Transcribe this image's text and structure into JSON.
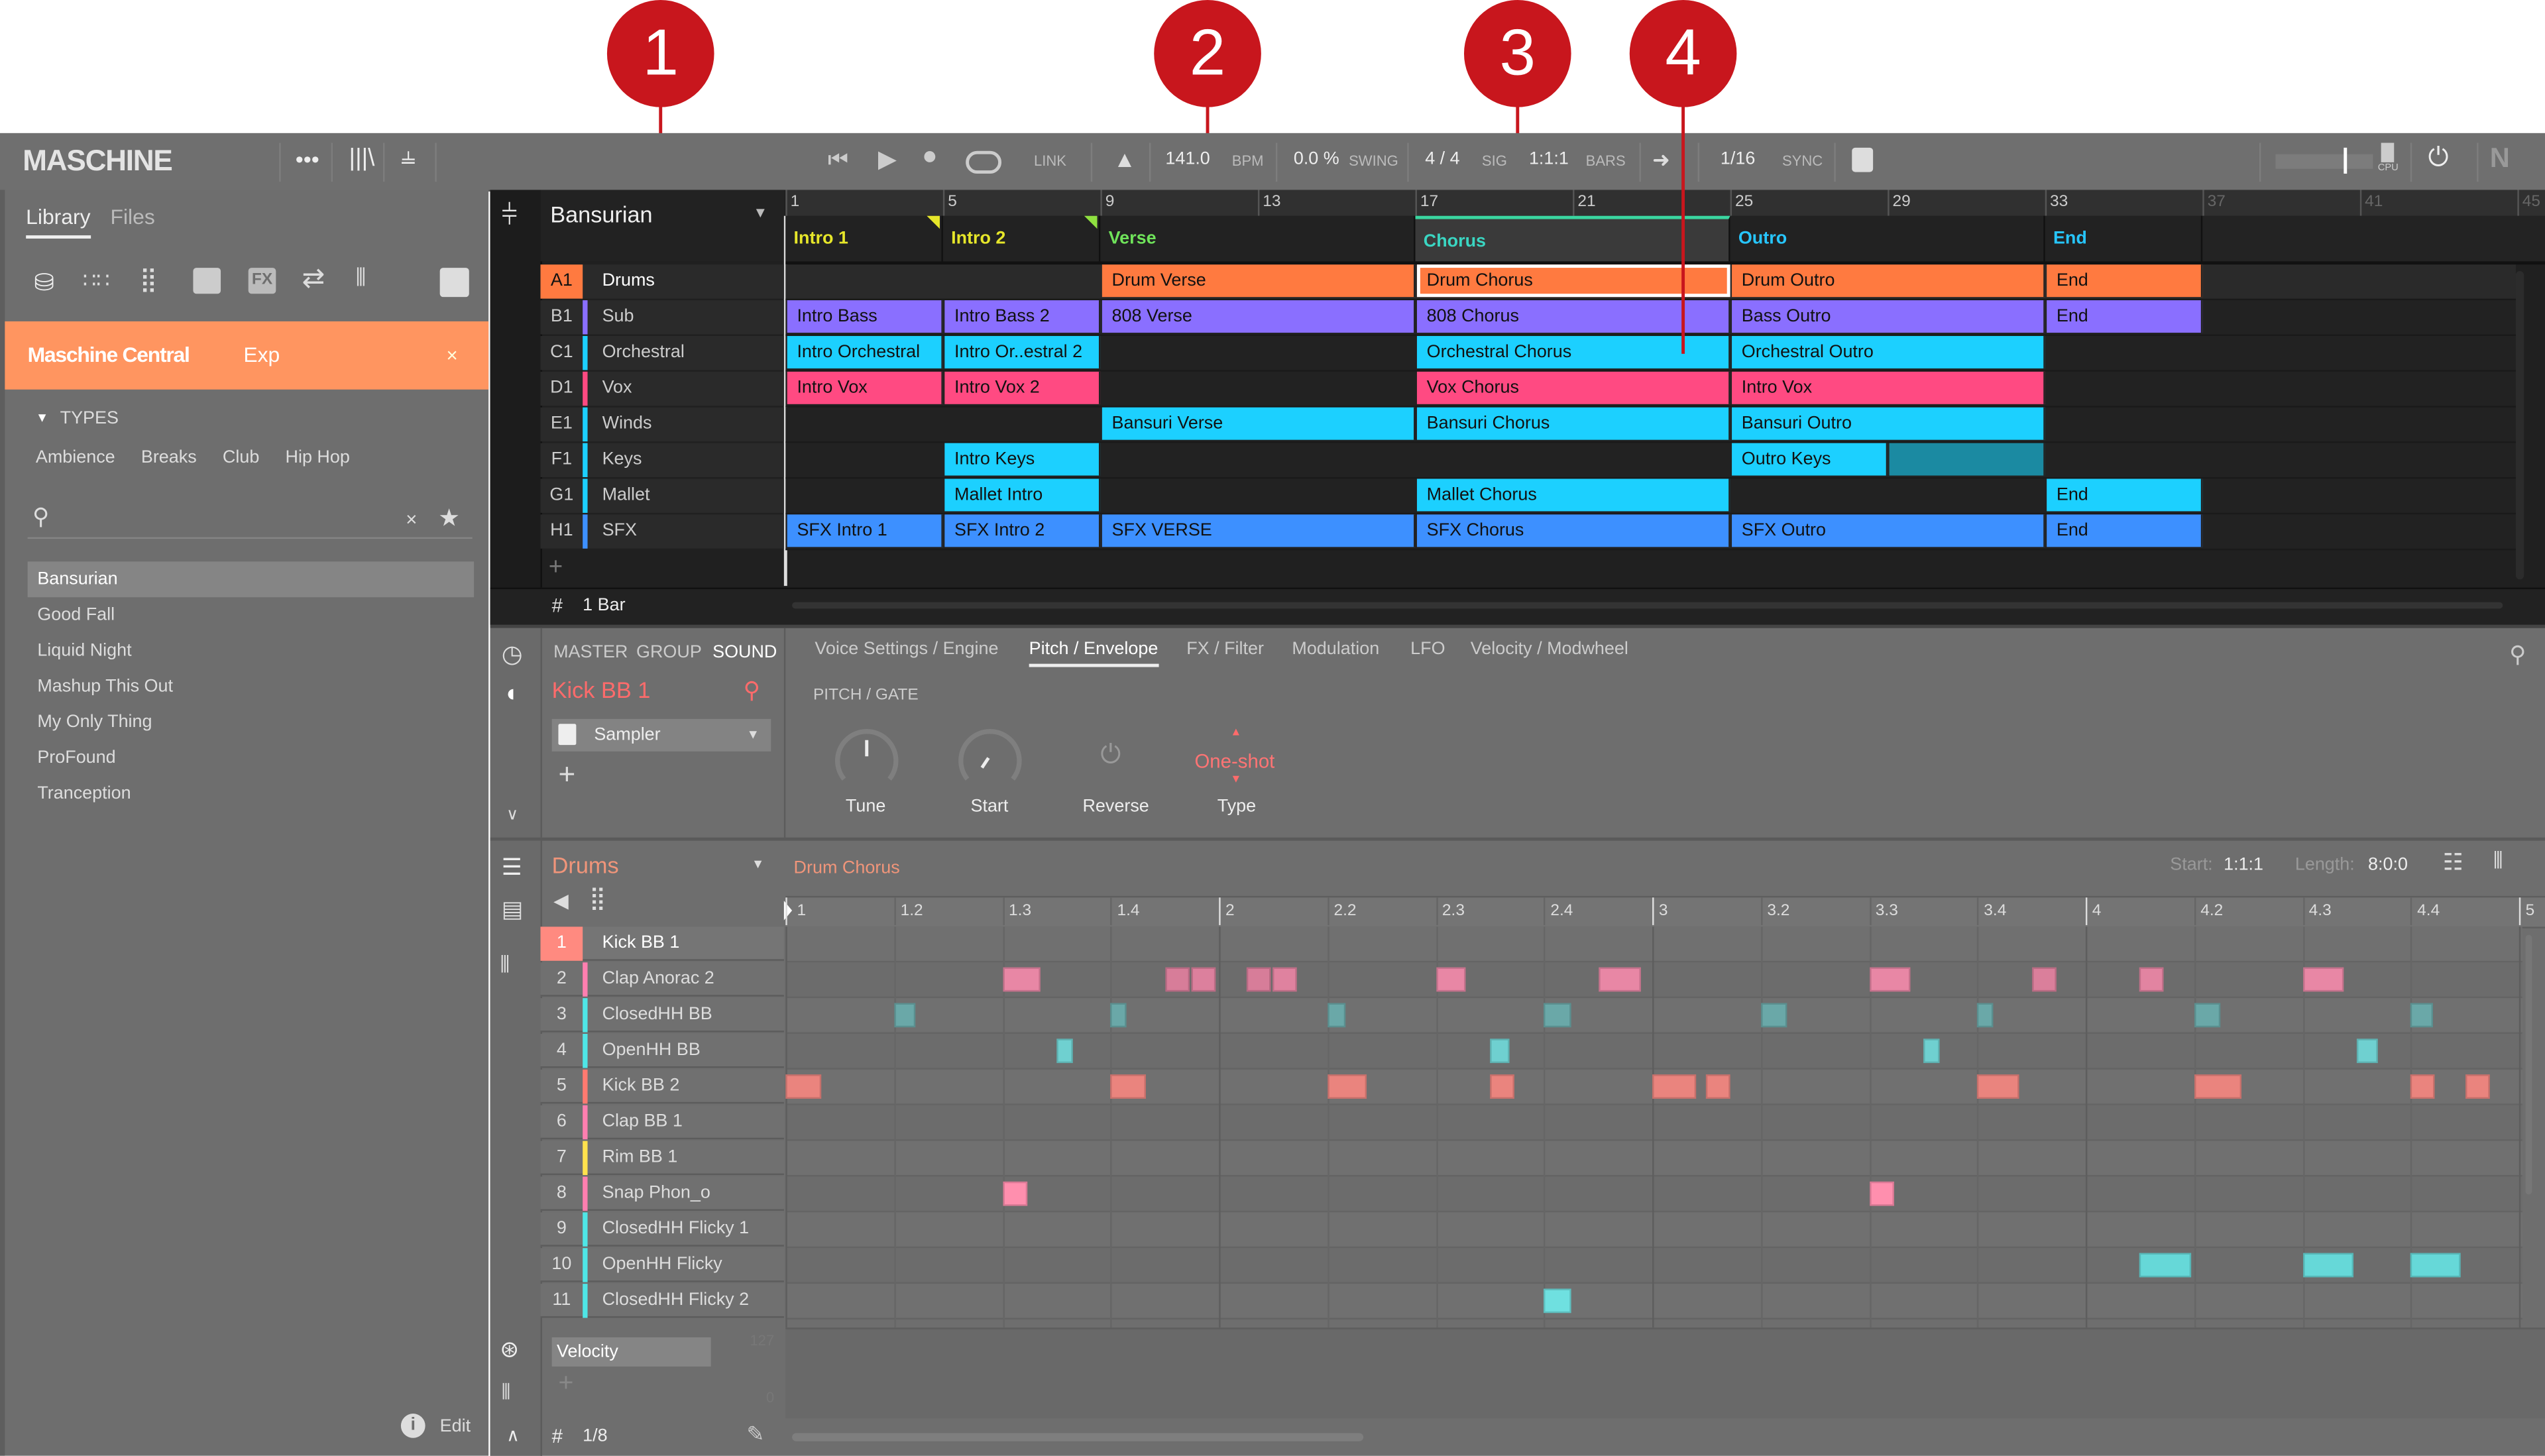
{
  "callouts": [
    "1",
    "2",
    "3",
    "4"
  ],
  "header": {
    "logo": "MASCHINE",
    "link": "LINK",
    "tempo": "141.0",
    "tempo_unit": "BPM",
    "swing": "0.0 %",
    "swing_label": "SWING",
    "signature": "4 / 4",
    "signature_label": "SIG",
    "position": "1:1:1",
    "position_label": "BARS",
    "quantize": "1/16",
    "sync_label": "SYNC",
    "cpu_label": "CPU"
  },
  "sidebar": {
    "tabs": [
      "Library",
      "Files"
    ],
    "banner": "Maschine Central",
    "banner_suffix": "Exp",
    "banner_close": "×",
    "types_label": "TYPES",
    "types": [
      "Ambience",
      "Breaks",
      "Club",
      "Hip Hop"
    ],
    "search_placeholder": "",
    "clear": "×",
    "items": [
      "Bansurian",
      "Good Fall",
      "Liquid Night",
      "Mashup This Out",
      "My Only Thing",
      "ProFound",
      "Tranception"
    ],
    "selected_index": 0,
    "edit_label": "Edit"
  },
  "arrangement": {
    "project": "Bansurian",
    "bar_numbers": [
      "1",
      "5",
      "9",
      "13",
      "17",
      "21",
      "25",
      "29",
      "33",
      "37",
      "41",
      "45"
    ],
    "scenes": [
      {
        "label": "Intro 1",
        "start": 1,
        "length": 4,
        "color": "#e6e62a"
      },
      {
        "label": "Intro 2",
        "start": 5,
        "length": 4,
        "color": "#e6e62a"
      },
      {
        "label": "Verse",
        "start": 9,
        "length": 8,
        "color": "#6fe35a"
      },
      {
        "label": "Chorus",
        "start": 17,
        "length": 8,
        "color": "#3ad6c2",
        "selected": true
      },
      {
        "label": "Outro",
        "start": 25,
        "length": 8,
        "color": "#27c6ff"
      },
      {
        "label": "End",
        "start": 33,
        "length": 4,
        "color": "#27c6ff"
      }
    ],
    "groups": [
      {
        "id": "A1",
        "name": "Drums",
        "color": "#ff7a40",
        "selected": true,
        "clips": [
          {
            "label": "Drum Verse",
            "start": 9,
            "length": 8
          },
          {
            "label": "Drum Chorus",
            "start": 17,
            "length": 8,
            "selected": true
          },
          {
            "label": "Drum Outro",
            "start": 25,
            "length": 8
          },
          {
            "label": "End",
            "start": 33,
            "length": 4
          }
        ]
      },
      {
        "id": "B1",
        "name": "Sub",
        "color": "#8a6fff",
        "clips": [
          {
            "label": "Intro Bass",
            "start": 1,
            "length": 4
          },
          {
            "label": "Intro Bass 2",
            "start": 5,
            "length": 4
          },
          {
            "label": "808 Verse",
            "start": 9,
            "length": 8
          },
          {
            "label": "808 Chorus",
            "start": 17,
            "length": 8
          },
          {
            "label": "Bass Outro",
            "start": 25,
            "length": 8
          },
          {
            "label": "End",
            "start": 33,
            "length": 4
          }
        ]
      },
      {
        "id": "C1",
        "name": "Orchestral",
        "color": "#1cd0ff",
        "clips": [
          {
            "label": "Intro Orchestral",
            "start": 1,
            "length": 4
          },
          {
            "label": "Intro Or..estral 2",
            "start": 5,
            "length": 4
          },
          {
            "label": "Orchestral Chorus",
            "start": 17,
            "length": 8
          },
          {
            "label": "Orchestral Outro",
            "start": 25,
            "length": 8
          }
        ]
      },
      {
        "id": "D1",
        "name": "Vox",
        "color": "#ff4a82",
        "clips": [
          {
            "label": "Intro Vox",
            "start": 1,
            "length": 4
          },
          {
            "label": "Intro Vox 2",
            "start": 5,
            "length": 4
          },
          {
            "label": "Vox Chorus",
            "start": 17,
            "length": 8
          },
          {
            "label": "Intro Vox",
            "start": 25,
            "length": 8
          }
        ]
      },
      {
        "id": "E1",
        "name": "Winds",
        "color": "#1cd0ff",
        "clips": [
          {
            "label": "Bansuri Verse",
            "start": 9,
            "length": 8
          },
          {
            "label": "Bansuri Chorus",
            "start": 17,
            "length": 8
          },
          {
            "label": "Bansuri Outro",
            "start": 25,
            "length": 8
          }
        ]
      },
      {
        "id": "F1",
        "name": "Keys",
        "color": "#1cd0ff",
        "clips": [
          {
            "label": "Intro Keys",
            "start": 5,
            "length": 4
          },
          {
            "label": "Outro Keys",
            "start": 25,
            "length": 4
          },
          {
            "label": "",
            "start": 29,
            "length": 4,
            "color": "#1b8aa2"
          }
        ]
      },
      {
        "id": "G1",
        "name": "Mallet",
        "color": "#1cd0ff",
        "clips": [
          {
            "label": "Mallet Intro",
            "start": 5,
            "length": 4
          },
          {
            "label": "Mallet Chorus",
            "start": 17,
            "length": 8
          },
          {
            "label": "End",
            "start": 33,
            "length": 4
          }
        ]
      },
      {
        "id": "H1",
        "name": "SFX",
        "color": "#3d90ff",
        "clips": [
          {
            "label": "SFX Intro 1",
            "start": 1,
            "length": 4
          },
          {
            "label": "SFX Intro 2",
            "start": 5,
            "length": 4
          },
          {
            "label": "SFX VERSE",
            "start": 9,
            "length": 8
          },
          {
            "label": "SFX Chorus",
            "start": 17,
            "length": 8
          },
          {
            "label": "SFX Outro",
            "start": 25,
            "length": 8
          },
          {
            "label": "End",
            "start": 33,
            "length": 4
          }
        ]
      }
    ],
    "add": "+",
    "grid_label": "1 Bar"
  },
  "sound_panel": {
    "levels": [
      "MASTER",
      "GROUP",
      "SOUND"
    ],
    "active_level": "SOUND",
    "sound_name": "Kick BB 1",
    "plugin": "Sampler",
    "add": "+",
    "tabs": [
      "Voice Settings / Engine",
      "Pitch / Envelope",
      "FX / Filter",
      "Modulation",
      "LFO",
      "Velocity / Modwheel"
    ],
    "active_tab": 1,
    "section": "PITCH / GATE",
    "params": {
      "tune": "Tune",
      "start": "Start",
      "reverse": "Reverse",
      "type": "Type",
      "type_value": "One-shot"
    },
    "knob_values": {
      "tune": 0.5,
      "start": 0.2
    }
  },
  "pattern_editor": {
    "group": "Drums",
    "pattern": "Drum Chorus",
    "start_label": "Start:",
    "start": "1:1:1",
    "length_label": "Length:",
    "length": "8:0:0",
    "ruler": [
      "1",
      "1.2",
      "1.3",
      "1.4",
      "2",
      "2.2",
      "2.3",
      "2.4",
      "3",
      "3.2",
      "3.3",
      "3.4",
      "4",
      "4.2",
      "4.3",
      "4.4",
      "5"
    ],
    "steps_per_bar": 16,
    "sounds": [
      {
        "num": "1",
        "name": "Kick BB 1",
        "color": "#ff8a80",
        "selected": true,
        "notes": []
      },
      {
        "num": "2",
        "name": "Clap Anorac 2",
        "color": "#ff7fb0",
        "note_color": "#e887a5",
        "notes": [
          [
            8,
            1.4,
            1
          ],
          [
            14,
            0.9,
            0.7
          ],
          [
            15,
            0.9,
            0.8
          ],
          [
            17,
            0.9,
            0.7
          ],
          [
            18,
            0.9,
            0.85
          ],
          [
            24,
            1.1,
            1
          ],
          [
            30,
            1.6,
            1
          ],
          [
            40,
            1.5,
            1
          ],
          [
            46,
            0.9,
            0.75
          ],
          [
            50,
            0.9,
            0.9
          ],
          [
            56,
            1.5,
            1
          ]
        ]
      },
      {
        "num": "3",
        "name": "ClosedHH BB",
        "color": "#4fe6e6",
        "note_color": "#6aa8a8",
        "notes": [
          [
            4,
            0.8,
            1
          ],
          [
            12,
            0.6,
            1
          ],
          [
            20,
            0.7,
            1
          ],
          [
            28,
            1,
            1
          ],
          [
            36,
            1,
            1
          ],
          [
            44,
            0.6,
            1
          ],
          [
            52,
            1,
            1
          ],
          [
            60,
            0.8,
            1
          ]
        ]
      },
      {
        "num": "4",
        "name": "OpenHH BB",
        "color": "#4fe6e6",
        "note_color": "#6fd0d0",
        "notes": [
          [
            10,
            0.6,
            1
          ],
          [
            26,
            0.7,
            1
          ],
          [
            42,
            0.6,
            1
          ],
          [
            58,
            0.8,
            1
          ]
        ]
      },
      {
        "num": "5",
        "name": "Kick BB 2",
        "color": "#ff7a70",
        "note_color": "#ea847e",
        "notes": [
          [
            0,
            1.3,
            1
          ],
          [
            12,
            1.3,
            1
          ],
          [
            20,
            1.45,
            1
          ],
          [
            26,
            0.9,
            1
          ],
          [
            32,
            1.6,
            1
          ],
          [
            34,
            0.9,
            1
          ],
          [
            44,
            1.55,
            1
          ],
          [
            52,
            1.75,
            1
          ],
          [
            60,
            0.9,
            1
          ],
          [
            62,
            0.9,
            1
          ]
        ]
      },
      {
        "num": "6",
        "name": "Clap BB 1",
        "color": "#ff7fb0",
        "notes": []
      },
      {
        "num": "7",
        "name": "Rim BB 1",
        "color": "#ffe24d",
        "notes": []
      },
      {
        "num": "8",
        "name": "Snap Phon_o",
        "color": "#ff7fb0",
        "note_color": "#ff8fae",
        "notes": [
          [
            8,
            0.9,
            1
          ],
          [
            40,
            0.9,
            1
          ]
        ]
      },
      {
        "num": "9",
        "name": "ClosedHH Flicky 1",
        "color": "#4fe6e6",
        "notes": []
      },
      {
        "num": "10",
        "name": "OpenHH Flicky",
        "color": "#4fe6e6",
        "note_color": "#66d8d8",
        "notes": [
          [
            50,
            1.9,
            1
          ],
          [
            56,
            1.9,
            1
          ],
          [
            60,
            1.85,
            1
          ]
        ]
      },
      {
        "num": "11",
        "name": "ClosedHH Flicky 2",
        "color": "#4fe6e6",
        "note_color": "#6fe0e0",
        "notes": [
          [
            28,
            1,
            1
          ]
        ]
      }
    ],
    "velocity_label": "Velocity",
    "velocity_max": "127",
    "velocity_min": "0",
    "add": "+",
    "grid_label": "1/8"
  }
}
